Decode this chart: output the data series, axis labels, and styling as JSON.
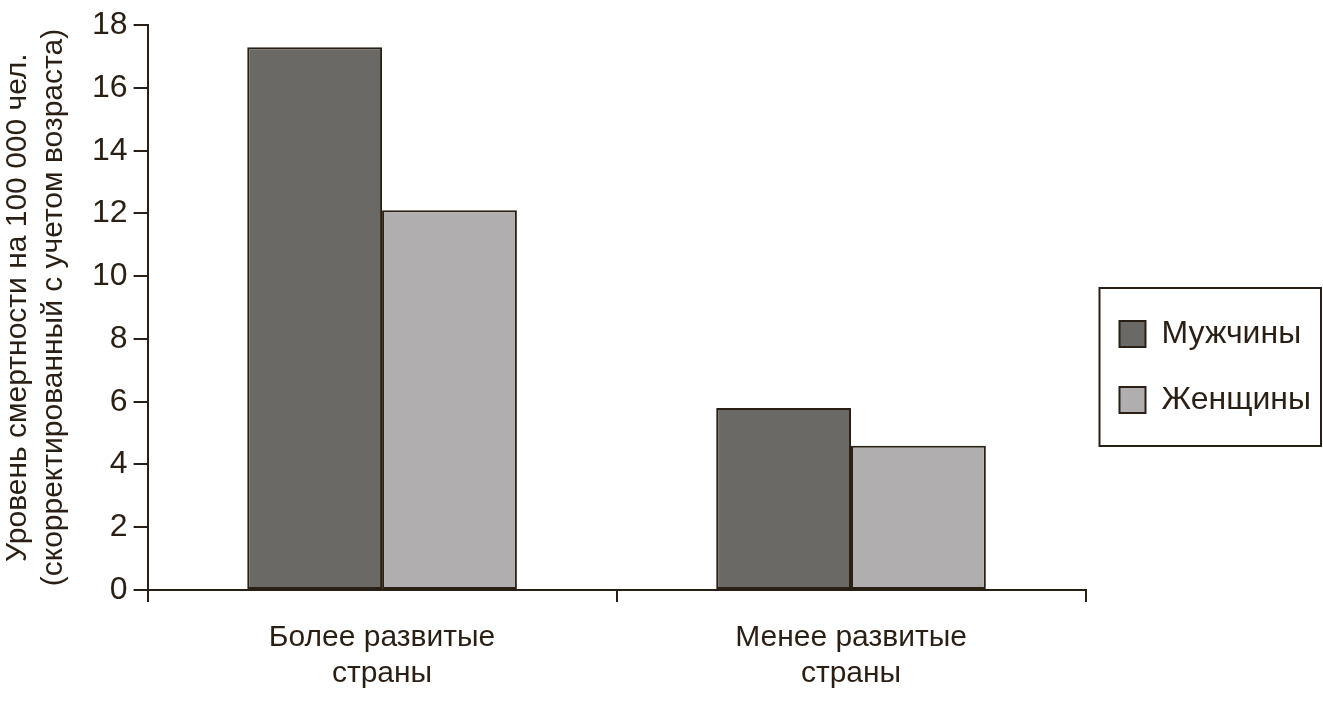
{
  "chart_data": {
    "type": "bar",
    "ylabel": "Уровень смертности на 100 000 чел. (скорректированный с учетом возраста)",
    "categories": [
      "Более развитые страны",
      "Менее развитые страны"
    ],
    "series": [
      {
        "name": "Мужчины",
        "color": "#6a6965",
        "values": [
          17.3,
          5.8
        ]
      },
      {
        "name": "Женщины",
        "color": "#b0aeaf",
        "values": [
          12.1,
          4.6
        ]
      }
    ],
    "ylim": [
      0,
      18
    ],
    "yticks": [
      0,
      2,
      4,
      6,
      8,
      10,
      12,
      14,
      16,
      18
    ],
    "legend": "right"
  }
}
